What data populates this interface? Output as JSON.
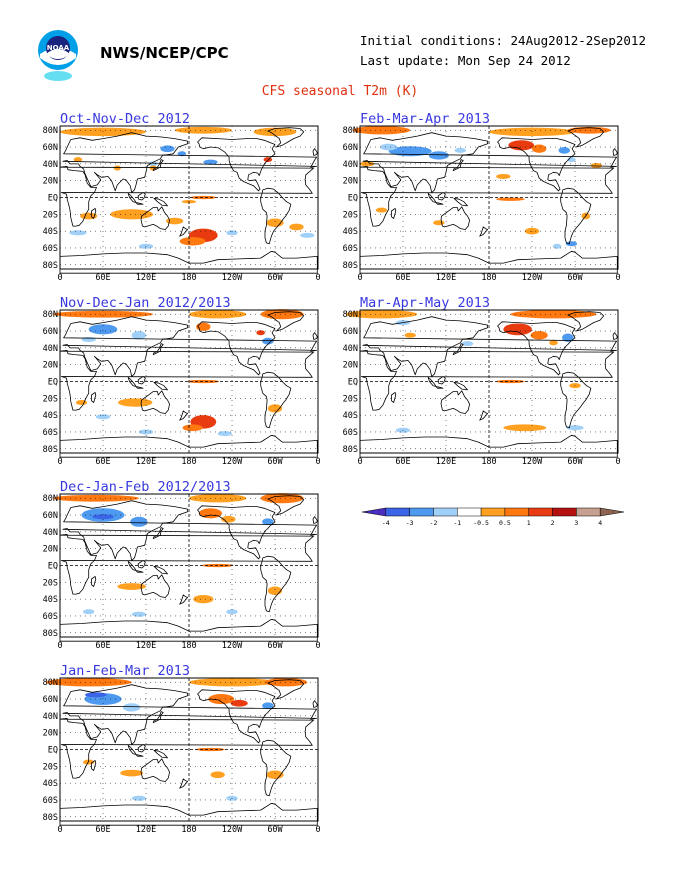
{
  "header": {
    "org": "NWS/NCEP/CPC",
    "initial_conditions": "Initial conditions: 24Aug2012-2Sep2012",
    "last_update": "Last update: Mon Sep 24 2012",
    "title": "CFS seasonal T2m (K)"
  },
  "logo": {
    "text": "NOAA"
  },
  "lat_labels": [
    "80N",
    "60N",
    "40N",
    "20N",
    "EQ",
    "20S",
    "40S",
    "60S",
    "80S"
  ],
  "lon_labels": [
    "0",
    "60E",
    "120E",
    "180",
    "120W",
    "60W",
    "0"
  ],
  "panels": [
    {
      "title": "Oct-Nov-Dec 2012"
    },
    {
      "title": "Feb-Mar-Apr 2013"
    },
    {
      "title": "Nov-Dec-Jan 2012/2013"
    },
    {
      "title": "Mar-Apr-May 2013"
    },
    {
      "title": "Dec-Jan-Feb 2012/2013"
    },
    {
      "title": "Jan-Feb-Mar 2013"
    }
  ],
  "legend": {
    "labels": [
      "-4",
      "-3",
      "-2",
      "-1",
      "-0.5",
      "0.5",
      "1",
      "2",
      "3",
      "4"
    ],
    "colors": [
      "#4a2ec0",
      "#3c64e6",
      "#4e9af0",
      "#a0d0f8",
      "#ffffff",
      "#ffa020",
      "#ff7810",
      "#e83c10",
      "#b41010",
      "#c8a090",
      "#8c6450"
    ]
  },
  "colors": {
    "title_blue": "#3838e0",
    "title_red": "#e03010",
    "warm_light": "#ffa020",
    "warm": "#ff7810",
    "warm_strong": "#e83c10",
    "cool_light": "#a0d0f8",
    "cool": "#4e9af0",
    "cool_strong": "#3c64e6"
  }
}
